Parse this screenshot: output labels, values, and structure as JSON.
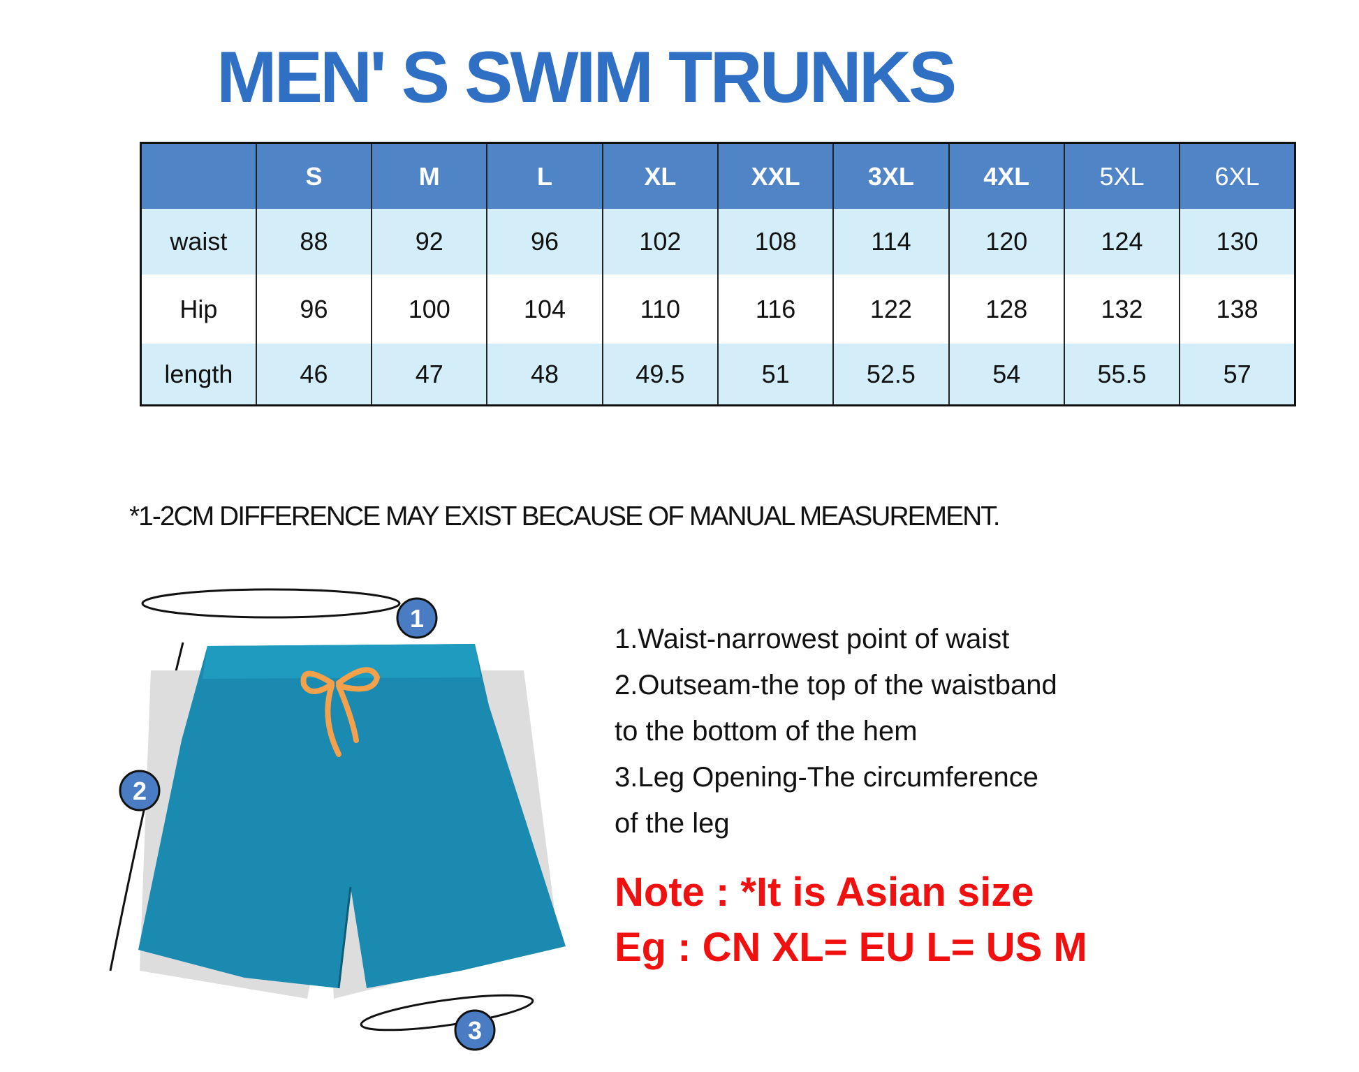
{
  "title": "MEN' S SWIM TRUNKS",
  "table": {
    "headers": [
      "",
      "S",
      "M",
      "L",
      "XL",
      "XXL",
      "3XL",
      "4XL",
      "5XL",
      "6XL"
    ],
    "rows": [
      {
        "label": "waist",
        "values": [
          "88",
          "92",
          "96",
          "102",
          "108",
          "114",
          "120",
          "124",
          "130"
        ]
      },
      {
        "label": "Hip",
        "values": [
          "96",
          "100",
          "104",
          "110",
          "116",
          "122",
          "128",
          "132",
          "138"
        ]
      },
      {
        "label": "length",
        "values": [
          "46",
          "47",
          "48",
          "49.5",
          "51",
          "52.5",
          "54",
          "55.5",
          "57"
        ]
      }
    ]
  },
  "disclaimer": "*1-2CM DIFFERENCE MAY EXIST BECAUSE OF MANUAL MEASUREMENT.",
  "diagram": {
    "markers": [
      "1",
      "2",
      "3"
    ],
    "shorts_color": "#1a8ab0",
    "drawstring_color": "#f5a04a",
    "marker_color": "#4a7cc4"
  },
  "descriptions": [
    "1.Waist-narrowest point of waist",
    "2.Outseam-the top of the waistband",
    "to the bottom of the hem",
    "3.Leg Opening-The circumference",
    "of the leg"
  ],
  "note": {
    "line1": "Note : *It is Asian size",
    "line2": "Eg : CN XL= EU L= US M",
    "color": "#f01010"
  }
}
